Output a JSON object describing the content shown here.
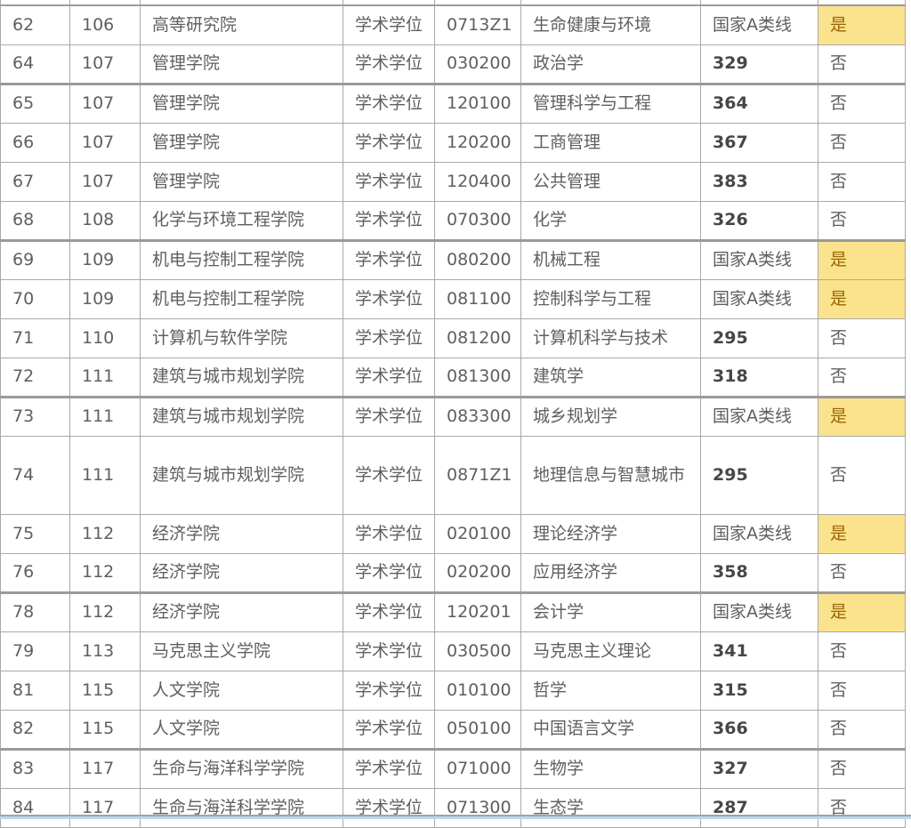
{
  "labels": {
    "yes": "是",
    "no": "否"
  },
  "colors": {
    "border": "#a9a9a9",
    "border_thick": "#9a9a9a",
    "text": "#5f5f5f",
    "score_text": "#474747",
    "hl_bg": "#fae38c",
    "hl_text": "#9c6504",
    "edge_gray": "#a3a3a3",
    "edge_blue": "#bdd7ec"
  },
  "table": {
    "rows": [
      [
        "62",
        "106",
        "高等研究院",
        "学术学位",
        "0713Z1",
        "生命健康与环境",
        "国家A类线",
        "是"
      ],
      [
        "64",
        "107",
        "管理学院",
        "学术学位",
        "030200",
        "政治学",
        "329",
        "否"
      ],
      [
        "65",
        "107",
        "管理学院",
        "学术学位",
        "120100",
        "管理科学与工程",
        "364",
        "否"
      ],
      [
        "66",
        "107",
        "管理学院",
        "学术学位",
        "120200",
        "工商管理",
        "367",
        "否"
      ],
      [
        "67",
        "107",
        "管理学院",
        "学术学位",
        "120400",
        "公共管理",
        "383",
        "否"
      ],
      [
        "68",
        "108",
        "化学与环境工程学院",
        "学术学位",
        "070300",
        "化学",
        "326",
        "否"
      ],
      [
        "69",
        "109",
        "机电与控制工程学院",
        "学术学位",
        "080200",
        "机械工程",
        "国家A类线",
        "是"
      ],
      [
        "70",
        "109",
        "机电与控制工程学院",
        "学术学位",
        "081100",
        "控制科学与工程",
        "国家A类线",
        "是"
      ],
      [
        "71",
        "110",
        "计算机与软件学院",
        "学术学位",
        "081200",
        "计算机科学与技术",
        "295",
        "否"
      ],
      [
        "72",
        "111",
        "建筑与城市规划学院",
        "学术学位",
        "081300",
        "建筑学",
        "318",
        "否"
      ],
      [
        "73",
        "111",
        "建筑与城市规划学院",
        "学术学位",
        "083300",
        "城乡规划学",
        "国家A类线",
        "是"
      ],
      [
        "74",
        "111",
        "建筑与城市规划学院",
        "学术学位",
        "0871Z1",
        "地理信息与智慧城市",
        "295",
        "否"
      ],
      [
        "75",
        "112",
        "经济学院",
        "学术学位",
        "020100",
        "理论经济学",
        "国家A类线",
        "是"
      ],
      [
        "76",
        "112",
        "经济学院",
        "学术学位",
        "020200",
        "应用经济学",
        "358",
        "否"
      ],
      [
        "78",
        "112",
        "经济学院",
        "学术学位",
        "120201",
        "会计学",
        "国家A类线",
        "是"
      ],
      [
        "79",
        "113",
        "马克思主义学院",
        "学术学位",
        "030500",
        "马克思主义理论",
        "341",
        "否"
      ],
      [
        "81",
        "115",
        "人文学院",
        "学术学位",
        "010100",
        "哲学",
        "315",
        "否"
      ],
      [
        "82",
        "115",
        "人文学院",
        "学术学位",
        "050100",
        "中国语言文学",
        "366",
        "否"
      ],
      [
        "83",
        "117",
        "生命与海洋科学学院",
        "学术学位",
        "071000",
        "生物学",
        "327",
        "否"
      ],
      [
        "84",
        "117",
        "生命与海洋科学学院",
        "学术学位",
        "071300",
        "生态学",
        "287",
        "否"
      ]
    ],
    "tall_rows": [
      "74"
    ],
    "thick_border_after_rows": [
      "64",
      "68",
      "72",
      "76",
      "82"
    ]
  }
}
